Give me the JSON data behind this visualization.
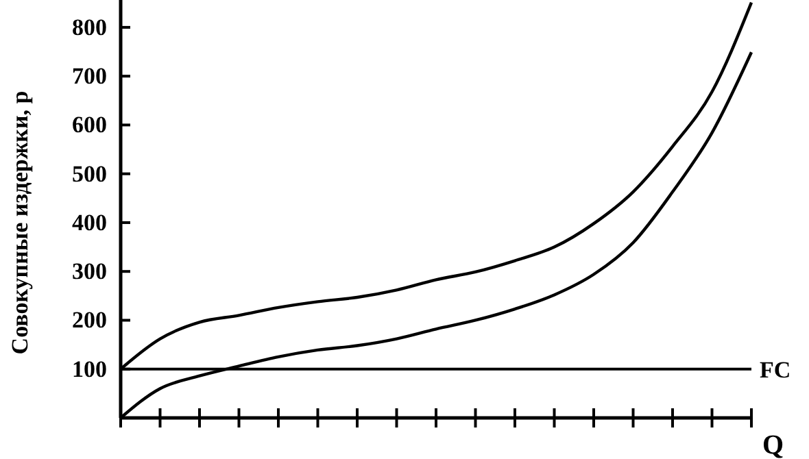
{
  "chart_data": {
    "type": "line",
    "ylabel": "Совокупные издержки, р",
    "xlabel": "Q",
    "categories": [
      null,
      null,
      null,
      null,
      null,
      null,
      null,
      null,
      null,
      null,
      null,
      null,
      null,
      null,
      null,
      null,
      null
    ],
    "series": [
      {
        "color": "#000000",
        "values": [
          100,
          162,
          196,
          210,
          226,
          238,
          247,
          262,
          283,
          299,
          322,
          350,
          398,
          463,
          556,
          668,
          851
        ]
      },
      {
        "color": "#000000",
        "values": [
          0,
          60,
          86,
          106,
          125,
          139,
          148,
          162,
          182,
          200,
          223,
          252,
          294,
          359,
          463,
          584,
          749
        ]
      }
    ],
    "ylim": [
      0,
      856
    ],
    "yticks": [
      100,
      200,
      300,
      400,
      500,
      600,
      700,
      800
    ],
    "ref_lines": [
      {
        "axis": "y",
        "value": 100,
        "label": "FC",
        "color": "#000000"
      }
    ],
    "line_style": "solid"
  }
}
